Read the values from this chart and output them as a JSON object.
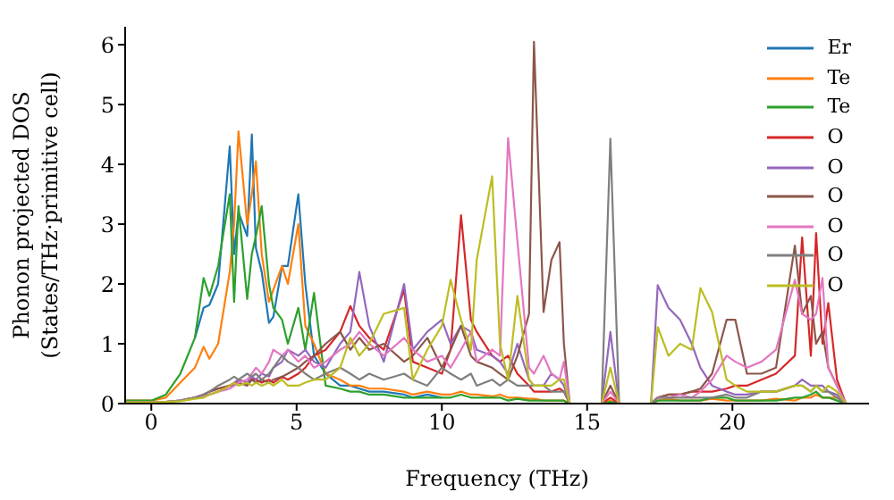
{
  "chart_data": {
    "type": "line",
    "xlabel": "Frequency (THz)",
    "ylabel": "Phonon projected DOS\n(States/THz·primitive cell)",
    "xlim": [
      -0.9,
      24.7
    ],
    "xticks": [
      0,
      5,
      10,
      15,
      20
    ],
    "ylim": [
      0,
      6.3
    ],
    "yticks": [
      0,
      1,
      2,
      3,
      4,
      5,
      6
    ],
    "legend": "top right",
    "marker": "none",
    "line_style": "solid",
    "x": [
      -0.9,
      0,
      0.5,
      1,
      1.5,
      1.8,
      2,
      2.3,
      2.7,
      2.85,
      3,
      3.3,
      3.46,
      3.6,
      3.8,
      4.05,
      4.2,
      4.5,
      4.7,
      5.06,
      5.3,
      5.6,
      6,
      6.5,
      6.85,
      7.16,
      7.5,
      8,
      8.7,
      9,
      9.5,
      10,
      10.3,
      10.66,
      11,
      11.2,
      11.73,
      12,
      12.28,
      12.6,
      13,
      13.17,
      13.5,
      13.77,
      14.05,
      14.2,
      14.4,
      15.5,
      15.8,
      16.1,
      17.2,
      17.43,
      17.8,
      18.2,
      18.6,
      18.9,
      19.3,
      19.8,
      20.1,
      20.5,
      21,
      21.5,
      22.15,
      22.4,
      22.7,
      22.88,
      23.1,
      23.3,
      23.6,
      23.9,
      24.7
    ],
    "series": [
      {
        "name": "Er",
        "color": "#1f77b4",
        "values": [
          null,
          null,
          null,
          null,
          1.1,
          1.6,
          1.65,
          2.0,
          4.3,
          2.5,
          3.2,
          2.8,
          4.5,
          2.6,
          2.2,
          1.35,
          1.45,
          2.3,
          2.3,
          3.5,
          2.0,
          0.8,
          0.5,
          0.3,
          0.3,
          0.25,
          0.2,
          0.2,
          0.15,
          0.1,
          0.15,
          0.1,
          null,
          null,
          null,
          null,
          null,
          null,
          null,
          null,
          null,
          null,
          null,
          null,
          null,
          null,
          null,
          null,
          null,
          null,
          null,
          null,
          null,
          null,
          null,
          null,
          null,
          null,
          null,
          null,
          null,
          null,
          null,
          null,
          null,
          null,
          null,
          null,
          null,
          null,
          null
        ]
      },
      {
        "name": "Te",
        "color": "#ff7f0e",
        "values": [
          0.05,
          0.05,
          0.1,
          0.35,
          0.6,
          0.95,
          0.75,
          1.0,
          2.2,
          3.0,
          4.55,
          3.0,
          3.5,
          4.05,
          2.5,
          1.7,
          1.9,
          2.3,
          2.0,
          3.0,
          1.3,
          1.0,
          0.5,
          0.4,
          0.3,
          0.3,
          0.25,
          0.25,
          0.2,
          0.15,
          0.2,
          0.15,
          0.15,
          0.2,
          0.15,
          0.15,
          0.12,
          0.15,
          0.1,
          0.1,
          0.08,
          0.08,
          0.05,
          0.05,
          0.05,
          0.05,
          0,
          0,
          0.05,
          0,
          0,
          0.05,
          0.08,
          0.05,
          0.05,
          0.05,
          0.08,
          0.05,
          0.05,
          0.05,
          0.05,
          0.08,
          0.05,
          0.1,
          0.1,
          0.15,
          0.1,
          0.1,
          0.1,
          0,
          0
        ]
      },
      {
        "name": "Te",
        "color": "#2ca02c",
        "values": [
          0.05,
          0.05,
          0.15,
          0.5,
          1.1,
          2.1,
          1.8,
          2.3,
          3.5,
          1.7,
          3.3,
          1.75,
          2.5,
          2.8,
          3.3,
          2.0,
          1.6,
          1.4,
          1.0,
          1.6,
          0.9,
          1.85,
          0.3,
          0.25,
          0.2,
          0.2,
          0.15,
          0.15,
          0.1,
          0.1,
          0.1,
          0.1,
          0.1,
          0.15,
          0.1,
          0.1,
          0.1,
          0.1,
          0.05,
          0.08,
          0.05,
          0.05,
          0.05,
          0.05,
          0.05,
          0.05,
          0,
          0,
          0.03,
          0,
          0,
          0.05,
          0.05,
          0.05,
          0.05,
          0.05,
          0.1,
          0.1,
          0.05,
          0.05,
          0.05,
          0.05,
          0.1,
          0.1,
          0.15,
          0.2,
          0.1,
          0.1,
          0.05,
          0,
          0
        ]
      },
      {
        "name": "O",
        "color": "#d62728",
        "values": [
          null,
          null,
          null,
          0.05,
          0.1,
          0.15,
          0.2,
          0.25,
          0.3,
          0.3,
          0.4,
          0.35,
          0.4,
          0.4,
          0.35,
          0.4,
          0.35,
          0.45,
          0.4,
          0.5,
          0.6,
          0.8,
          0.9,
          1.2,
          1.63,
          1.3,
          1.1,
          0.9,
          1.9,
          0.7,
          0.6,
          0.5,
          0.9,
          3.15,
          1.4,
          1.2,
          0.8,
          0.7,
          0.8,
          0.5,
          0.3,
          0.2,
          0.2,
          0.2,
          0.25,
          0.2,
          0,
          0,
          0.1,
          0,
          0,
          0.1,
          0.15,
          0.15,
          0.2,
          0.2,
          0.2,
          0.25,
          0.3,
          0.3,
          0.4,
          0.5,
          0.8,
          2.78,
          0.8,
          2.85,
          1.0,
          1.68,
          0.4,
          0,
          0
        ]
      },
      {
        "name": "O",
        "color": "#9467bd",
        "values": [
          0.02,
          0.02,
          0.03,
          0.05,
          0.1,
          0.15,
          0.15,
          0.2,
          0.3,
          0.35,
          0.4,
          0.35,
          0.45,
          0.4,
          0.5,
          0.45,
          0.6,
          0.7,
          0.9,
          0.8,
          0.9,
          0.7,
          0.6,
          1.0,
          1.2,
          2.2,
          1.3,
          0.7,
          2.0,
          0.9,
          1.2,
          1.4,
          1.0,
          1.3,
          1.2,
          0.9,
          0.8,
          0.7,
          0.5,
          1.0,
          0.4,
          0.3,
          0.3,
          0.5,
          0.4,
          0.3,
          0,
          0,
          1.2,
          0,
          0,
          1.98,
          1.6,
          1.4,
          1.0,
          0.6,
          0.3,
          0.2,
          0.15,
          0.15,
          0.2,
          0.2,
          0.3,
          0.4,
          0.3,
          0.3,
          0.3,
          0.2,
          0.15,
          0,
          0
        ]
      },
      {
        "name": "O",
        "color": "#8c564b",
        "values": [
          0.02,
          0.02,
          0.03,
          0.05,
          0.1,
          0.15,
          0.2,
          0.25,
          0.3,
          0.3,
          0.35,
          0.3,
          0.4,
          0.35,
          0.4,
          0.35,
          0.4,
          0.45,
          0.5,
          0.6,
          0.7,
          0.8,
          1.0,
          1.2,
          0.9,
          1.1,
          0.9,
          1.0,
          0.7,
          0.8,
          1.1,
          0.6,
          0.9,
          1.3,
          0.8,
          0.7,
          0.6,
          0.5,
          0.4,
          0.8,
          1.5,
          6.05,
          1.53,
          2.4,
          2.7,
          1.0,
          0,
          0,
          0.3,
          0,
          0,
          0.1,
          0.15,
          0.15,
          0.2,
          0.25,
          0.5,
          1.4,
          1.4,
          0.5,
          0.5,
          0.6,
          2.64,
          1.5,
          1.8,
          1.0,
          1.2,
          0.6,
          0.3,
          0,
          0
        ]
      },
      {
        "name": "O",
        "color": "#e377c2",
        "values": [
          0.02,
          0.02,
          0.03,
          0.05,
          0.1,
          0.12,
          0.15,
          0.2,
          0.25,
          0.3,
          0.35,
          0.4,
          0.5,
          0.6,
          0.5,
          0.7,
          0.9,
          0.8,
          0.9,
          0.7,
          0.8,
          0.6,
          0.7,
          0.9,
          1.0,
          1.2,
          1.0,
          0.8,
          1.1,
          0.9,
          0.7,
          0.8,
          0.6,
          0.9,
          1.2,
          0.7,
          0.9,
          0.8,
          4.44,
          2.72,
          0.6,
          0.5,
          0.8,
          0.5,
          0.4,
          0.7,
          0,
          0,
          0.2,
          0,
          0,
          0.1,
          0.1,
          0.15,
          0.1,
          0.2,
          0.4,
          0.8,
          0.7,
          0.6,
          0.7,
          0.9,
          2.07,
          1.5,
          1.4,
          1.5,
          2.1,
          0.6,
          0.3,
          0,
          0
        ]
      },
      {
        "name": "O",
        "color": "#7f7f7f",
        "values": [
          0.02,
          0.02,
          0.03,
          0.05,
          0.1,
          0.15,
          0.2,
          0.3,
          0.4,
          0.45,
          0.4,
          0.5,
          0.45,
          0.5,
          0.4,
          0.5,
          0.6,
          0.8,
          0.7,
          0.6,
          0.5,
          0.4,
          0.5,
          0.6,
          0.5,
          0.4,
          0.5,
          0.4,
          0.5,
          0.4,
          0.3,
          0.6,
          0.5,
          0.4,
          0.5,
          0.3,
          0.4,
          0.3,
          0.4,
          0.3,
          0.3,
          0.3,
          0.3,
          0.2,
          0.2,
          0.2,
          0,
          0,
          4.43,
          0,
          0,
          0.1,
          0.1,
          0.1,
          0.1,
          0.1,
          0.1,
          0.15,
          0.1,
          0.1,
          0.2,
          0.2,
          0.3,
          0.3,
          0.2,
          0.3,
          0.2,
          0.2,
          0.1,
          0,
          0
        ]
      },
      {
        "name": "O",
        "color": "#bcbd22",
        "values": [
          0.02,
          0.02,
          0.03,
          0.04,
          0.08,
          0.1,
          0.15,
          0.2,
          0.3,
          0.35,
          0.3,
          0.35,
          0.3,
          0.35,
          0.3,
          0.35,
          0.3,
          0.4,
          0.3,
          0.3,
          0.35,
          0.4,
          0.4,
          0.6,
          1.1,
          0.8,
          1.0,
          1.5,
          1.6,
          0.4,
          0.9,
          1.3,
          2.07,
          1.4,
          0.9,
          2.4,
          3.8,
          1.0,
          0.4,
          1.8,
          0.4,
          0.3,
          0.3,
          0.3,
          0.4,
          0.4,
          0,
          0,
          0.6,
          0,
          0,
          1.28,
          0.8,
          1.0,
          0.9,
          1.93,
          1.53,
          0.4,
          0.3,
          0.2,
          0.2,
          0.2,
          0.3,
          0.3,
          0.2,
          0.3,
          0.2,
          0.3,
          0.2,
          0,
          0
        ]
      }
    ]
  }
}
